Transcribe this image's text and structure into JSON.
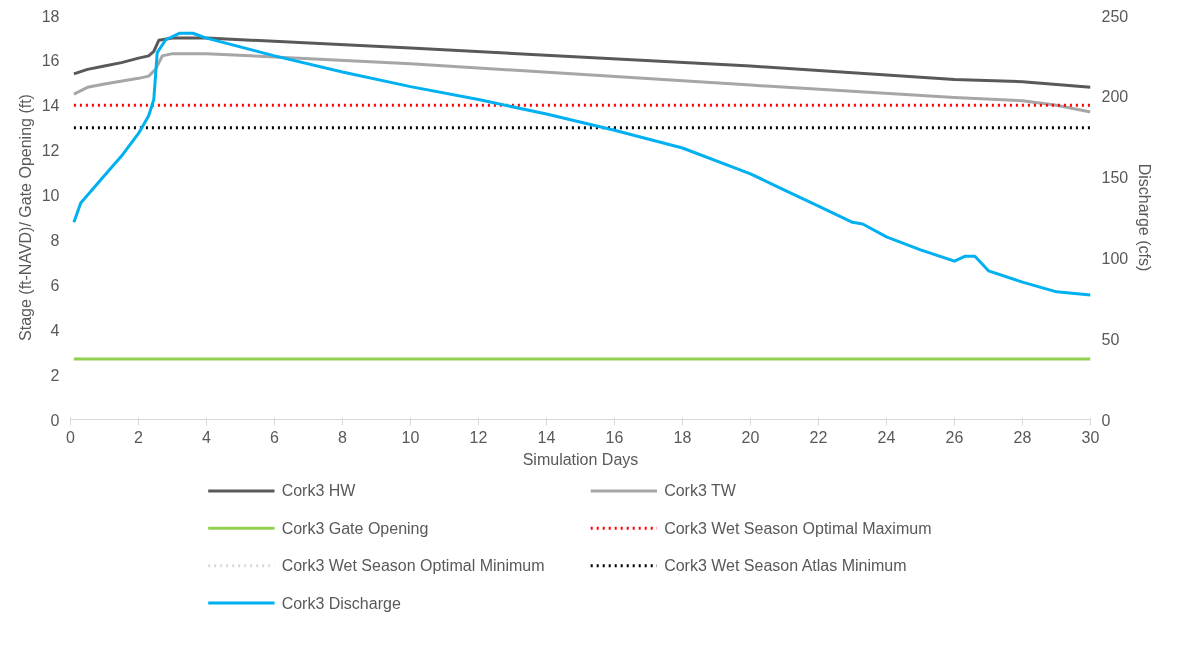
{
  "chart_data": {
    "type": "line",
    "xlabel": "Simulation Days",
    "ylabel": "Stage (ft-NAVD)/ Gate Opening (ft)",
    "y2label": "Discharge (cfs)",
    "xlim": [
      0,
      30
    ],
    "xticks": [
      0,
      2,
      4,
      6,
      8,
      10,
      12,
      14,
      16,
      18,
      20,
      22,
      24,
      26,
      28,
      30
    ],
    "ylim": [
      0,
      18
    ],
    "yticks": [
      0,
      2,
      4,
      6,
      8,
      10,
      12,
      14,
      16,
      18
    ],
    "y2lim": [
      0,
      250
    ],
    "y2ticks": [
      0,
      50,
      100,
      150,
      200,
      250
    ],
    "grid": false,
    "legend": "bottom",
    "marker": "none",
    "series": [
      {
        "name": "Cork3 HW",
        "color": "#595959",
        "line_style": "solid",
        "x": [
          0.1,
          0.5,
          1,
          1.5,
          2,
          2.3,
          2.45,
          2.6,
          3,
          4,
          10,
          20,
          26,
          28,
          30
        ],
        "values": [
          15.4,
          15.6,
          15.75,
          15.9,
          16.1,
          16.2,
          16.4,
          16.9,
          17.0,
          17.0,
          16.55,
          15.75,
          15.15,
          15.05,
          14.8
        ]
      },
      {
        "name": "Cork3 TW",
        "color": "#a6a6a6",
        "line_style": "solid",
        "x": [
          0.1,
          0.5,
          1,
          2,
          2.3,
          2.5,
          2.7,
          3,
          4,
          10,
          20,
          26,
          28,
          29,
          30
        ],
        "values": [
          14.5,
          14.8,
          14.95,
          15.2,
          15.3,
          15.6,
          16.2,
          16.3,
          16.3,
          15.85,
          14.9,
          14.35,
          14.2,
          14.0,
          13.7
        ]
      },
      {
        "name": "Cork3 Gate Opening",
        "color": "#92d050",
        "line_style": "solid",
        "x": [
          0.1,
          30
        ],
        "values": [
          2.7,
          2.7
        ]
      },
      {
        "name": "Cork3 Wet Season Optimal Maximum",
        "color": "#ff0000",
        "line_style": "dotted",
        "x": [
          0.1,
          30
        ],
        "values": [
          14,
          14
        ]
      },
      {
        "name": "Cork3 Wet Season Optimal Minimum",
        "color": "#d9d9d9",
        "line_style": "dotted",
        "values": [
          null,
          null
        ]
      },
      {
        "name": "Cork3 Wet Season Atlas Minimum",
        "color": "#000000",
        "line_style": "dotted",
        "x": [
          0.1,
          30
        ],
        "values": [
          13,
          13
        ]
      },
      {
        "name": "Cork3 Discharge",
        "color": "#00b0f0",
        "line_style": "solid",
        "axis": "y2",
        "x": [
          0.1,
          0.3,
          1,
          1.5,
          2,
          2.3,
          2.45,
          2.55,
          2.8,
          3.2,
          3.6,
          4,
          6,
          8,
          10,
          12,
          14,
          16,
          18,
          20,
          21,
          22,
          23,
          23.3,
          24,
          25,
          26,
          26.3,
          26.6,
          27,
          28,
          29,
          30
        ],
        "values": [
          122,
          134,
          151,
          163,
          177,
          188,
          198,
          227,
          235,
          239,
          239,
          236,
          225,
          215,
          206,
          198,
          189,
          179,
          168,
          152,
          142,
          132,
          122,
          121,
          113,
          105,
          98,
          101,
          101,
          92,
          85,
          79,
          77
        ]
      }
    ]
  }
}
